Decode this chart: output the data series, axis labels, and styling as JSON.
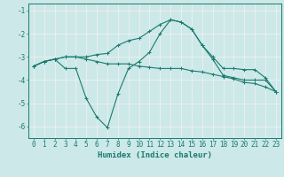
{
  "x": [
    0,
    1,
    2,
    3,
    4,
    5,
    6,
    7,
    8,
    9,
    10,
    11,
    12,
    13,
    14,
    15,
    16,
    17,
    18,
    19,
    20,
    21,
    22,
    23
  ],
  "line_upper": [
    -3.4,
    -3.2,
    -3.1,
    -3.0,
    -3.0,
    -3.0,
    -2.9,
    -2.85,
    -2.5,
    -2.3,
    -2.2,
    -1.9,
    -1.6,
    -1.4,
    -1.5,
    -1.8,
    -2.5,
    -3.0,
    -3.5,
    -3.5,
    -3.55,
    -3.55,
    -3.9,
    -4.5
  ],
  "line_lower": [
    -3.4,
    -3.2,
    -3.1,
    -3.5,
    -3.5,
    -4.8,
    -5.6,
    -6.05,
    -4.6,
    -3.5,
    -3.2,
    -2.8,
    -2.0,
    -1.4,
    -1.5,
    -1.8,
    -2.5,
    -3.1,
    -3.8,
    -3.9,
    -4.0,
    -4.0,
    -4.0,
    -4.5
  ],
  "line_mid": [
    -3.4,
    -3.2,
    -3.1,
    -3.0,
    -3.0,
    -3.1,
    -3.2,
    -3.3,
    -3.3,
    -3.3,
    -3.4,
    -3.45,
    -3.5,
    -3.5,
    -3.5,
    -3.6,
    -3.65,
    -3.75,
    -3.85,
    -3.95,
    -4.1,
    -4.15,
    -4.3,
    -4.5
  ],
  "color": "#1a7a6e",
  "bg_color": "#cce8e8",
  "grid_color": "#f0f0f0",
  "xlabel": "Humidex (Indice chaleur)",
  "xlabel_fontsize": 6.5,
  "tick_fontsize": 5.5,
  "ylim": [
    -6.5,
    -0.7
  ],
  "xlim": [
    -0.5,
    23.5
  ],
  "yticks": [
    -6,
    -5,
    -4,
    -3,
    -2,
    -1
  ],
  "xticks": [
    0,
    1,
    2,
    3,
    4,
    5,
    6,
    7,
    8,
    9,
    10,
    11,
    12,
    13,
    14,
    15,
    16,
    17,
    18,
    19,
    20,
    21,
    22,
    23
  ],
  "figsize": [
    3.2,
    2.0
  ],
  "dpi": 100
}
